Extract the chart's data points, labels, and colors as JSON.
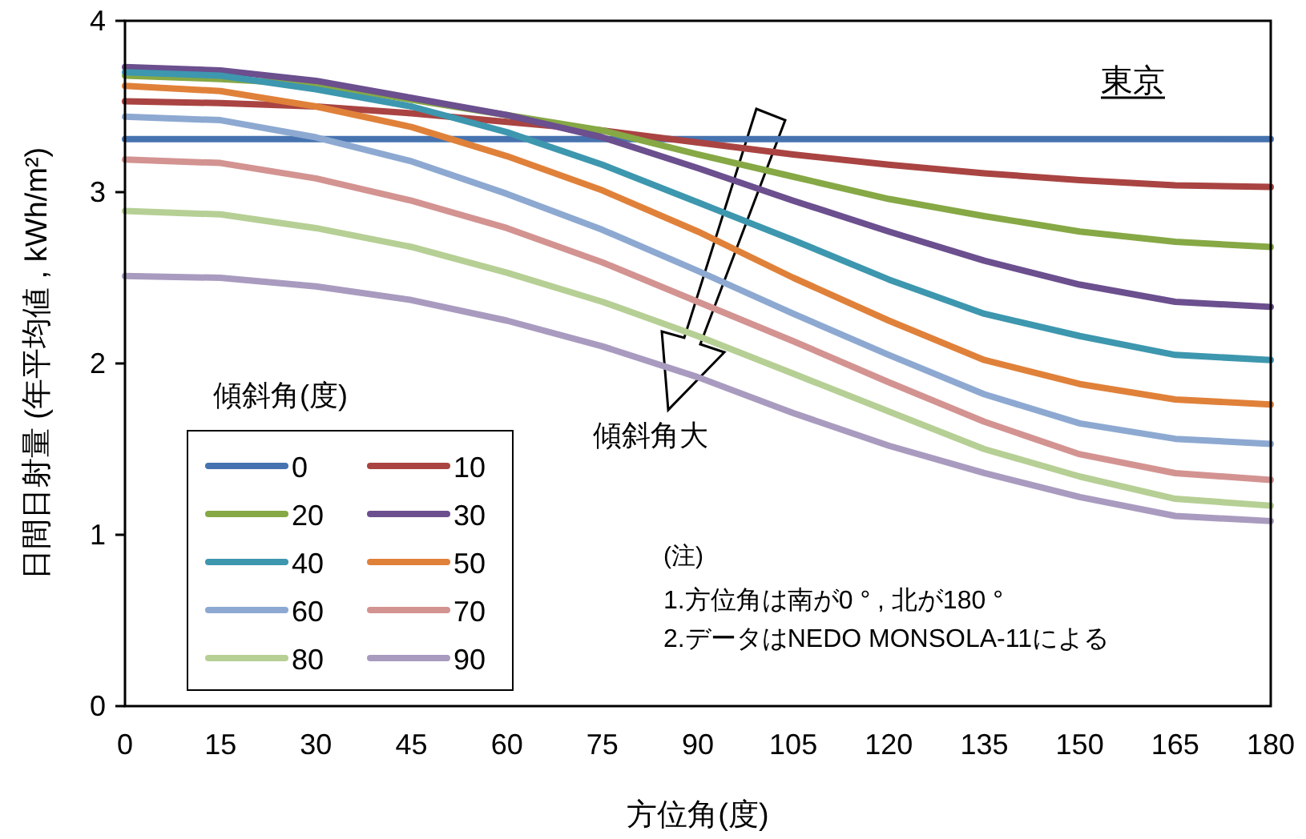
{
  "chart_data": {
    "type": "line",
    "xlabel": "方位角(度)",
    "ylabel": "日間日射量 (年平均値 , kWh/m²)",
    "legend_title": "傾斜角(度)",
    "legend": "bottom left",
    "grid": false,
    "marker": "none",
    "line_style": "solid",
    "x": [
      0,
      15,
      30,
      45,
      60,
      75,
      90,
      105,
      120,
      135,
      150,
      165,
      180
    ],
    "xlim": [
      0,
      180
    ],
    "xticks": [
      0,
      15,
      30,
      45,
      60,
      75,
      90,
      105,
      120,
      135,
      150,
      165,
      180
    ],
    "ylim": [
      0,
      4
    ],
    "yticks": [
      0,
      1,
      2,
      3,
      4
    ],
    "series": [
      {
        "name": "0",
        "color": "#4673b0",
        "values": [
          3.31,
          3.31,
          3.31,
          3.31,
          3.31,
          3.31,
          3.31,
          3.31,
          3.31,
          3.31,
          3.31,
          3.31,
          3.31
        ]
      },
      {
        "name": "10",
        "color": "#a94442",
        "values": [
          3.53,
          3.52,
          3.5,
          3.46,
          3.41,
          3.36,
          3.29,
          3.22,
          3.16,
          3.11,
          3.07,
          3.04,
          3.03
        ]
      },
      {
        "name": "20",
        "color": "#86a845",
        "values": [
          3.68,
          3.66,
          3.63,
          3.54,
          3.45,
          3.36,
          3.22,
          3.09,
          2.96,
          2.86,
          2.77,
          2.71,
          2.68
        ]
      },
      {
        "name": "30",
        "color": "#6b4f8e",
        "values": [
          3.73,
          3.71,
          3.65,
          3.55,
          3.45,
          3.32,
          3.14,
          2.95,
          2.77,
          2.6,
          2.46,
          2.36,
          2.33
        ]
      },
      {
        "name": "40",
        "color": "#3d97ae",
        "values": [
          3.7,
          3.68,
          3.6,
          3.5,
          3.35,
          3.16,
          2.94,
          2.72,
          2.49,
          2.29,
          2.16,
          2.05,
          2.02
        ]
      },
      {
        "name": "50",
        "color": "#e0813a",
        "values": [
          3.62,
          3.59,
          3.5,
          3.38,
          3.21,
          3.01,
          2.77,
          2.5,
          2.25,
          2.02,
          1.88,
          1.79,
          1.76
        ]
      },
      {
        "name": "60",
        "color": "#8da9d1",
        "values": [
          3.44,
          3.42,
          3.32,
          3.18,
          2.99,
          2.78,
          2.54,
          2.29,
          2.05,
          1.82,
          1.65,
          1.56,
          1.53
        ]
      },
      {
        "name": "70",
        "color": "#d39391",
        "values": [
          3.19,
          3.17,
          3.08,
          2.95,
          2.79,
          2.59,
          2.36,
          2.13,
          1.89,
          1.66,
          1.47,
          1.36,
          1.32
        ]
      },
      {
        "name": "80",
        "color": "#b6cf95",
        "values": [
          2.89,
          2.87,
          2.79,
          2.68,
          2.53,
          2.36,
          2.16,
          1.94,
          1.72,
          1.5,
          1.34,
          1.21,
          1.17
        ]
      },
      {
        "name": "90",
        "color": "#a99bbf",
        "values": [
          2.51,
          2.5,
          2.45,
          2.37,
          2.25,
          2.1,
          1.92,
          1.71,
          1.52,
          1.36,
          1.22,
          1.11,
          1.08
        ]
      }
    ],
    "annotations": [
      "東京",
      "傾斜角大",
      "(注)",
      "1.方位角は南が0 ° , 北が180 °",
      "2.データはNEDO MONSOLA-11による"
    ]
  }
}
